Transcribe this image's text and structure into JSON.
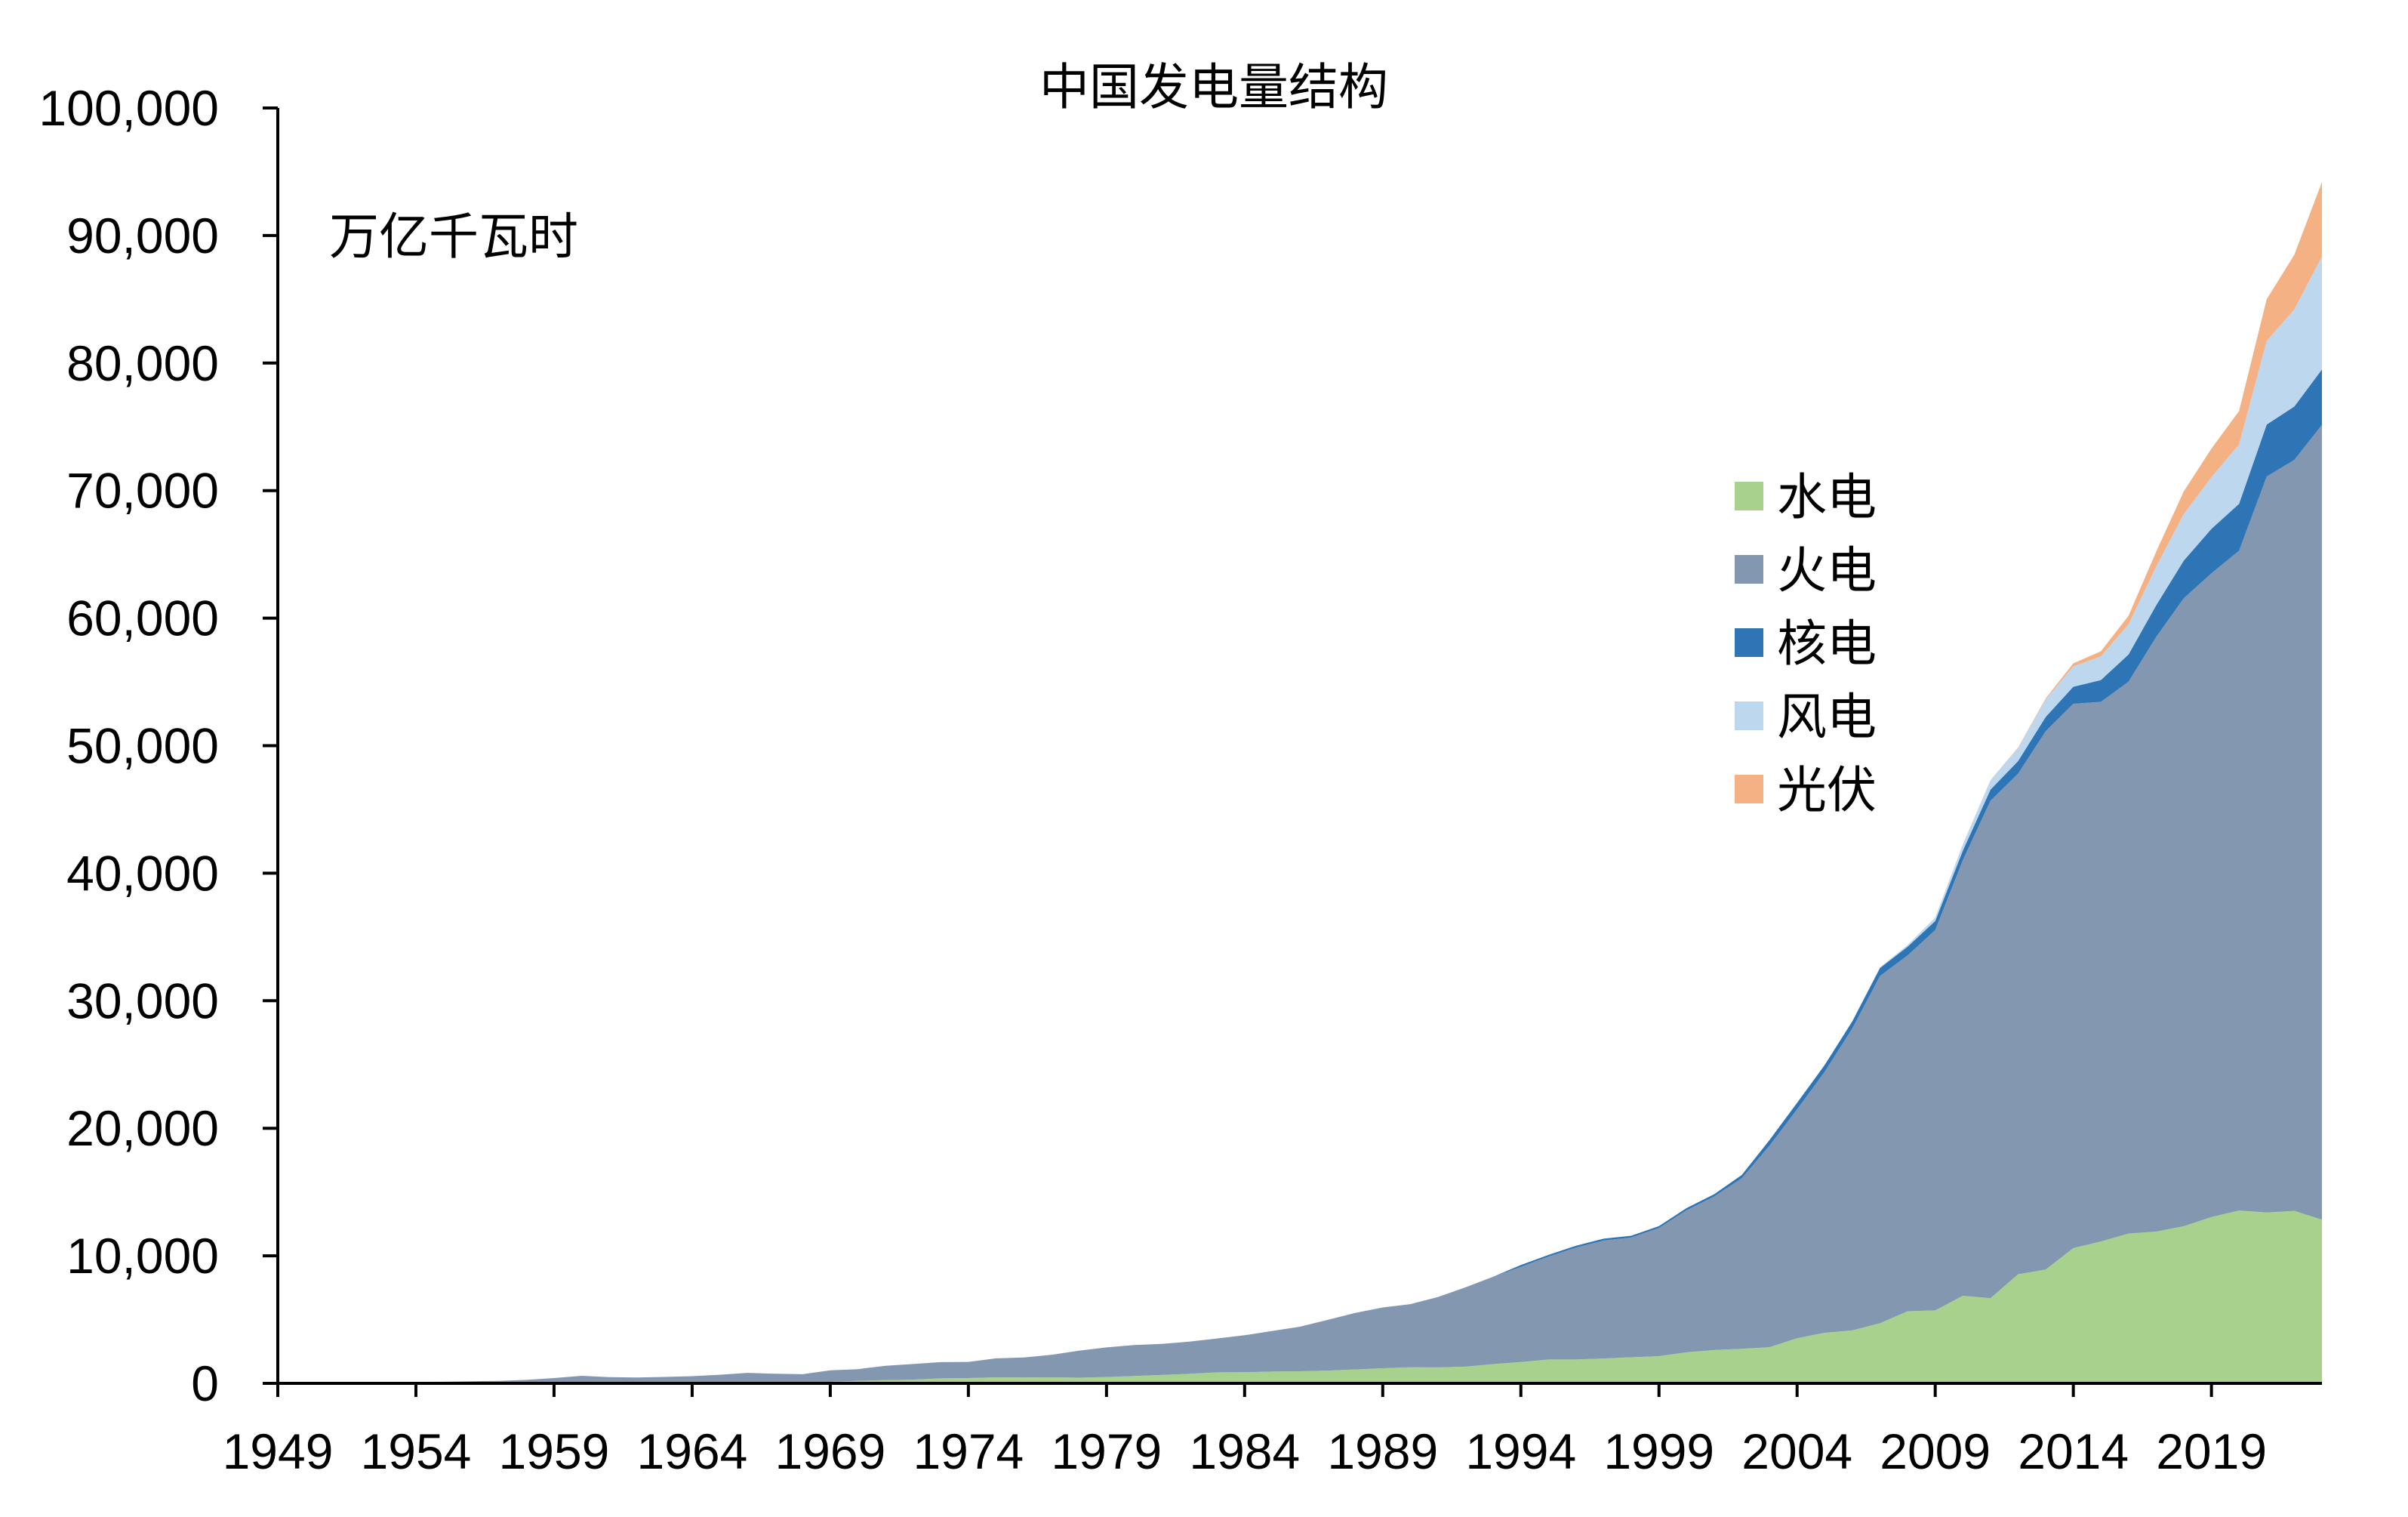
{
  "chart_data": {
    "type": "area",
    "stacked": true,
    "title": "中国发电量结构",
    "unit_label": "万亿千瓦时",
    "xlabel": "",
    "ylabel": "",
    "ylim": [
      0,
      100000
    ],
    "xlim": [
      1949,
      2023
    ],
    "y_ticks": [
      0,
      10000,
      20000,
      30000,
      40000,
      50000,
      60000,
      70000,
      80000,
      90000,
      100000
    ],
    "y_tick_labels": [
      "0",
      "10,000",
      "20,000",
      "30,000",
      "40,000",
      "50,000",
      "60,000",
      "70,000",
      "80,000",
      "90,000",
      "100,000"
    ],
    "x_ticks": [
      1949,
      1954,
      1959,
      1964,
      1969,
      1974,
      1979,
      1984,
      1989,
      1994,
      1999,
      2004,
      2009,
      2014,
      2019
    ],
    "x_tick_labels": [
      "1949",
      "1954",
      "1959",
      "1964",
      "1969",
      "1974",
      "1979",
      "1984",
      "1989",
      "1994",
      "1999",
      "2004",
      "2009",
      "2014",
      "2019"
    ],
    "grid": false,
    "legend_position": "right",
    "x": [
      1949,
      1950,
      1951,
      1952,
      1953,
      1954,
      1955,
      1956,
      1957,
      1958,
      1959,
      1960,
      1961,
      1962,
      1963,
      1964,
      1965,
      1966,
      1967,
      1968,
      1969,
      1970,
      1971,
      1972,
      1973,
      1974,
      1975,
      1976,
      1977,
      1978,
      1979,
      1980,
      1981,
      1982,
      1983,
      1984,
      1985,
      1986,
      1987,
      1988,
      1989,
      1990,
      1991,
      1992,
      1993,
      1994,
      1995,
      1996,
      1997,
      1998,
      1999,
      2000,
      2001,
      2002,
      2003,
      2004,
      2005,
      2006,
      2007,
      2008,
      2009,
      2010,
      2011,
      2012,
      2013,
      2014,
      2015,
      2016,
      2017,
      2018,
      2019,
      2020,
      2021,
      2022,
      2023
    ],
    "series": [
      {
        "name": "水电",
        "color": "#a9d18e",
        "values": [
          7,
          8,
          10,
          13,
          16,
          22,
          24,
          35,
          48,
          41,
          44,
          74,
          74,
          90,
          90,
          100,
          104,
          100,
          100,
          110,
          120,
          204,
          250,
          290,
          390,
          414,
          476,
          456,
          476,
          446,
          500,
          582,
          655,
          744,
          864,
          868,
          924,
          945,
          1000,
          1092,
          1185,
          1263,
          1248,
          1307,
          1507,
          1668,
          1868,
          1869,
          1946,
          2043,
          2129,
          2431,
          2611,
          2710,
          2836,
          3535,
          3964,
          4148,
          4714,
          5655,
          5717,
          6867,
          6681,
          8556,
          8921,
          10601,
          11127,
          11748,
          11898,
          12321,
          13044,
          13552,
          13401,
          13522,
          12836
        ]
      },
      {
        "name": "火电",
        "color": "#8497b0",
        "values": [
          36,
          38,
          47,
          60,
          76,
          88,
          99,
          133,
          145,
          234,
          370,
          520,
          416,
          368,
          412,
          460,
          572,
          725,
          654,
          606,
          898,
          911,
          1132,
          1226,
          1275,
          1270,
          1482,
          1575,
          1757,
          2119,
          2320,
          2424,
          2438,
          2528,
          2651,
          2903,
          3183,
          3496,
          3973,
          4429,
          4767,
          4950,
          5527,
          6227,
          6857,
          7470,
          8074,
          8781,
          9252,
          9388,
          10047,
          11142,
          12045,
          13381,
          15804,
          17956,
          20473,
          23696,
          27229,
          27901,
          29828,
          34166,
          39003,
          39255,
          42216,
          42686,
          42307,
          43273,
          46627,
          49249,
          50465,
          51743,
          57703,
          58888,
          62318
        ]
      },
      {
        "name": "核电",
        "color": "#2e75b6",
        "values": [
          0,
          0,
          0,
          0,
          0,
          0,
          0,
          0,
          0,
          0,
          0,
          0,
          0,
          0,
          0,
          0,
          0,
          0,
          0,
          0,
          0,
          0,
          0,
          0,
          0,
          0,
          0,
          0,
          0,
          0,
          0,
          0,
          0,
          0,
          0,
          0,
          0,
          0,
          0,
          0,
          0,
          0,
          0,
          0,
          2,
          140,
          128,
          143,
          144,
          141,
          149,
          167,
          175,
          251,
          433,
          505,
          531,
          548,
          621,
          684,
          701,
          739,
          872,
          983,
          1116,
          1332,
          1714,
          2132,
          2481,
          2944,
          3487,
          3662,
          4075,
          4178,
          4347
        ]
      },
      {
        "name": "风电",
        "color": "#bdd7ee",
        "values": [
          0,
          0,
          0,
          0,
          0,
          0,
          0,
          0,
          0,
          0,
          0,
          0,
          0,
          0,
          0,
          0,
          0,
          0,
          0,
          0,
          0,
          0,
          0,
          0,
          0,
          0,
          0,
          0,
          0,
          0,
          0,
          0,
          0,
          0,
          0,
          0,
          0,
          0,
          0,
          0,
          0,
          0,
          0,
          0,
          0,
          0,
          0,
          0,
          0,
          0,
          0,
          0,
          0,
          0,
          0,
          0,
          16,
          28,
          57,
          131,
          276,
          494,
          741,
          1030,
          1383,
          1598,
          1856,
          2371,
          3034,
          3658,
          4057,
          4665,
          6556,
          7627,
          8858
        ]
      },
      {
        "name": "光伏",
        "color": "#f4b183",
        "values": [
          0,
          0,
          0,
          0,
          0,
          0,
          0,
          0,
          0,
          0,
          0,
          0,
          0,
          0,
          0,
          0,
          0,
          0,
          0,
          0,
          0,
          0,
          0,
          0,
          0,
          0,
          0,
          0,
          0,
          0,
          0,
          0,
          0,
          0,
          0,
          0,
          0,
          0,
          0,
          0,
          0,
          0,
          0,
          0,
          0,
          0,
          0,
          0,
          0,
          0,
          0,
          0,
          0,
          0,
          0,
          0,
          0,
          0,
          0,
          0,
          0,
          1,
          6,
          36,
          84,
          235,
          395,
          665,
          1178,
          1775,
          2240,
          2611,
          3270,
          4276,
          5833
        ]
      }
    ]
  }
}
